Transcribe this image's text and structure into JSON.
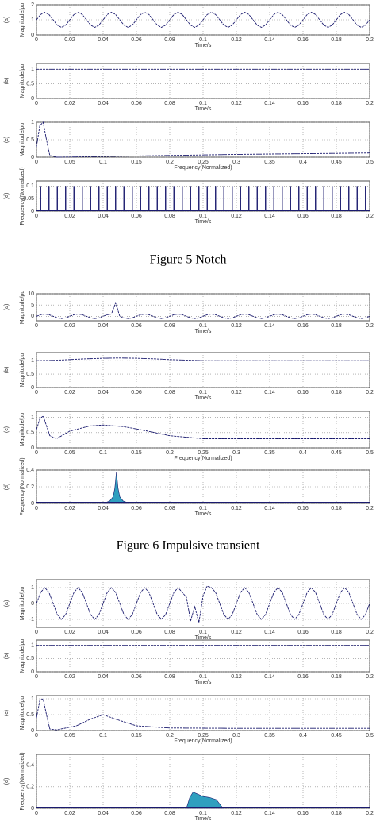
{
  "captions": [
    "Figure 5 Notch",
    "Figure 6 Impulsive transient"
  ],
  "chart_data": [
    {
      "type": "line",
      "panel": "(a)",
      "ylabel": "Magnitude/pu",
      "xlabel": "Time/s",
      "color": "#1a1a6e",
      "grid": true,
      "xlim": [
        0,
        0.2
      ],
      "ylim": [
        0,
        2
      ],
      "xticks": [
        0,
        0.02,
        0.04,
        0.06,
        0.08,
        0.1,
        0.12,
        0.14,
        0.16,
        0.18,
        0.2
      ],
      "yticks": [
        0,
        1,
        2
      ],
      "x": [
        0,
        0.0025,
        0.005,
        0.0075,
        0.01,
        0.0125,
        0.015,
        0.0175,
        0.02,
        0.0225,
        0.025,
        0.0275,
        0.03,
        0.0325,
        0.035,
        0.0375,
        0.04,
        0.0425,
        0.045,
        0.0475,
        0.05,
        0.0525,
        0.055,
        0.0575,
        0.06,
        0.0625,
        0.065,
        0.0675,
        0.07,
        0.0725,
        0.075,
        0.0775,
        0.08,
        0.0825,
        0.085,
        0.0875,
        0.09,
        0.0925,
        0.095,
        0.0975,
        0.1,
        0.1025,
        0.105,
        0.1075,
        0.11,
        0.1125,
        0.115,
        0.1175,
        0.12,
        0.1225,
        0.125,
        0.1275,
        0.13,
        0.1325,
        0.135,
        0.1375,
        0.14,
        0.1425,
        0.145,
        0.1475,
        0.15,
        0.1525,
        0.155,
        0.1575,
        0.16,
        0.1625,
        0.165,
        0.1675,
        0.17,
        0.1725,
        0.175,
        0.1775,
        0.18,
        0.1825,
        0.185,
        0.1875,
        0.19,
        0.1925,
        0.195,
        0.1975,
        0.2
      ],
      "values": [
        1,
        1.35,
        1.5,
        1.35,
        1,
        0.65,
        0.5,
        0.65,
        1,
        1.35,
        1.5,
        1.35,
        1,
        0.65,
        0.5,
        0.65,
        1,
        1.35,
        1.5,
        1.35,
        1,
        0.65,
        0.5,
        0.65,
        1,
        1.35,
        1.5,
        1.35,
        1,
        0.65,
        0.5,
        0.65,
        1,
        1.35,
        1.5,
        1.35,
        1,
        0.65,
        0.5,
        0.65,
        1,
        1.35,
        1.5,
        1.35,
        1,
        0.65,
        0.5,
        0.65,
        1,
        1.35,
        1.5,
        1.35,
        1,
        0.65,
        0.5,
        0.65,
        1,
        1.35,
        1.5,
        1.35,
        1,
        0.65,
        0.5,
        0.65,
        1,
        1.35,
        1.5,
        1.35,
        1,
        0.65,
        0.5,
        0.65,
        1,
        1.35,
        1.5,
        1.35,
        1,
        0.65,
        0.5,
        0.65,
        1
      ]
    },
    {
      "type": "line",
      "panel": "(b)",
      "ylabel": "Magnitude/pu",
      "xlabel": "Time/s",
      "color": "#1a1a6e",
      "grid": true,
      "xlim": [
        0,
        0.2
      ],
      "ylim": [
        0,
        1.2
      ],
      "xticks": [
        0,
        0.02,
        0.04,
        0.06,
        0.08,
        0.1,
        0.12,
        0.14,
        0.16,
        0.18,
        0.2
      ],
      "yticks": [
        0,
        0.5,
        1
      ],
      "x": [
        0,
        0.2
      ],
      "values": [
        1,
        1
      ]
    },
    {
      "type": "line",
      "panel": "(c)",
      "ylabel": "Magnitude/pu",
      "xlabel": "Frequency(Normalized)",
      "color": "#1a1a6e",
      "grid": true,
      "xlim": [
        0,
        0.5
      ],
      "ylim": [
        0,
        1
      ],
      "xticks": [
        0,
        0.05,
        0.1,
        0.15,
        0.2,
        0.25,
        0.3,
        0.35,
        0.4,
        0.45,
        0.5
      ],
      "yticks": [
        0,
        0.5,
        1
      ],
      "x": [
        0,
        0.005,
        0.01,
        0.015,
        0.02,
        0.03,
        0.1,
        0.2,
        0.3,
        0.4,
        0.5
      ],
      "values": [
        0.3,
        0.9,
        1,
        0.5,
        0.05,
        0,
        0.02,
        0.05,
        0.08,
        0.1,
        0.12
      ]
    },
    {
      "type": "spikes",
      "panel": "(d)",
      "ylabel": "Frequency(Normalized)",
      "xlabel": "Time/s",
      "color": "#1a1a6e",
      "grid": true,
      "xlim": [
        0,
        0.2
      ],
      "ylim": [
        0,
        0.12
      ],
      "xticks": [
        0,
        0.02,
        0.04,
        0.06,
        0.08,
        0.1,
        0.12,
        0.14,
        0.16,
        0.18,
        0.2
      ],
      "yticks": [
        0,
        0.05,
        0.1
      ],
      "x": [
        0.0025,
        0.0075,
        0.0125,
        0.0175,
        0.0225,
        0.0275,
        0.0325,
        0.0375,
        0.0425,
        0.0475,
        0.0525,
        0.0575,
        0.0625,
        0.0675,
        0.0725,
        0.0775,
        0.0825,
        0.0875,
        0.0925,
        0.0975,
        0.1025,
        0.1075,
        0.1125,
        0.1175,
        0.1225,
        0.1275,
        0.1325,
        0.1375,
        0.1425,
        0.1475,
        0.1525,
        0.1575,
        0.1625,
        0.1675,
        0.1725,
        0.1775,
        0.1825,
        0.1875,
        0.1925,
        0.1975
      ],
      "values": [
        0.1,
        0.1,
        0.1,
        0.1,
        0.1,
        0.1,
        0.1,
        0.1,
        0.1,
        0.1,
        0.1,
        0.1,
        0.1,
        0.1,
        0.1,
        0.1,
        0.1,
        0.1,
        0.1,
        0.1,
        0.1,
        0.1,
        0.1,
        0.1,
        0.1,
        0.1,
        0.1,
        0.1,
        0.1,
        0.1,
        0.1,
        0.1,
        0.1,
        0.1,
        0.1,
        0.1,
        0.1,
        0.1,
        0.1,
        0.1
      ]
    },
    {
      "type": "line",
      "panel": "(a)",
      "ylabel": "Magnitude/pu",
      "xlabel": "Time/s",
      "color": "#1a1a6e",
      "grid": true,
      "xlim": [
        0,
        0.2
      ],
      "ylim": [
        -2,
        10
      ],
      "xticks": [
        0,
        0.02,
        0.04,
        0.06,
        0.08,
        0.1,
        0.12,
        0.14,
        0.16,
        0.18,
        0.2
      ],
      "yticks": [
        0,
        5,
        10
      ],
      "x": [
        0,
        0.0025,
        0.005,
        0.0075,
        0.01,
        0.0125,
        0.015,
        0.0175,
        0.02,
        0.0225,
        0.025,
        0.0275,
        0.03,
        0.0325,
        0.035,
        0.0375,
        0.04,
        0.0425,
        0.045,
        0.0475,
        0.05,
        0.0525,
        0.055,
        0.0575,
        0.06,
        0.0625,
        0.065,
        0.0675,
        0.07,
        0.0725,
        0.075,
        0.0775,
        0.08,
        0.0825,
        0.085,
        0.0875,
        0.09,
        0.0925,
        0.095,
        0.0975,
        0.1,
        0.1025,
        0.105,
        0.1075,
        0.11,
        0.1125,
        0.115,
        0.1175,
        0.12,
        0.1225,
        0.125,
        0.1275,
        0.13,
        0.1325,
        0.135,
        0.1375,
        0.14,
        0.1425,
        0.145,
        0.1475,
        0.15,
        0.1525,
        0.155,
        0.1575,
        0.16,
        0.1625,
        0.165,
        0.1675,
        0.17,
        0.1725,
        0.175,
        0.1775,
        0.18,
        0.1825,
        0.185,
        0.1875,
        0.19,
        0.1925,
        0.195,
        0.1975,
        0.2
      ],
      "values": [
        0,
        0.7,
        1,
        0.7,
        0,
        -0.7,
        -1,
        -0.7,
        0,
        0.7,
        1,
        0.7,
        0,
        -0.7,
        -1,
        -0.7,
        0,
        0.7,
        1,
        6,
        0,
        -0.7,
        -1,
        -0.7,
        0,
        0.7,
        1,
        0.7,
        0,
        -0.7,
        -1,
        -0.7,
        0,
        0.7,
        1,
        0.7,
        0,
        -0.7,
        -1,
        -0.7,
        0,
        0.7,
        1,
        0.7,
        0,
        -0.7,
        -1,
        -0.7,
        0,
        0.7,
        1,
        0.7,
        0,
        -0.7,
        -1,
        -0.7,
        0,
        0.7,
        1,
        0.7,
        0,
        -0.7,
        -1,
        -0.7,
        0,
        0.7,
        1,
        0.7,
        0,
        -0.7,
        -1,
        -0.7,
        0,
        0.7,
        1,
        0.7,
        0,
        -0.7,
        -1,
        -0.7,
        0
      ]
    },
    {
      "type": "line",
      "panel": "(b)",
      "ylabel": "Magnitude/pu",
      "xlabel": "Time/s",
      "color": "#1a1a6e",
      "grid": true,
      "xlim": [
        0,
        0.2
      ],
      "ylim": [
        0,
        1.3
      ],
      "xticks": [
        0,
        0.02,
        0.04,
        0.06,
        0.08,
        0.1,
        0.12,
        0.14,
        0.16,
        0.18,
        0.2
      ],
      "yticks": [
        0,
        0.5,
        1
      ],
      "x": [
        0,
        0.01,
        0.02,
        0.03,
        0.04,
        0.05,
        0.06,
        0.07,
        0.08,
        0.09,
        0.1,
        0.2
      ],
      "values": [
        1,
        1.01,
        1.04,
        1.07,
        1.09,
        1.1,
        1.09,
        1.07,
        1.04,
        1.02,
        1,
        1
      ]
    },
    {
      "type": "line",
      "panel": "(c)",
      "ylabel": "Magnitude/pu",
      "xlabel": "Frequency(Normalized)",
      "color": "#1a1a6e",
      "grid": true,
      "xlim": [
        0,
        0.5
      ],
      "ylim": [
        0,
        1.2
      ],
      "xticks": [
        0,
        0.05,
        0.1,
        0.15,
        0.2,
        0.25,
        0.3,
        0.35,
        0.4,
        0.45,
        0.5
      ],
      "yticks": [
        0,
        0.5,
        1
      ],
      "x": [
        0,
        0.005,
        0.01,
        0.02,
        0.03,
        0.05,
        0.08,
        0.1,
        0.13,
        0.16,
        0.2,
        0.25,
        0.3,
        0.4,
        0.5
      ],
      "values": [
        0.6,
        0.95,
        1.05,
        0.4,
        0.3,
        0.55,
        0.72,
        0.75,
        0.7,
        0.58,
        0.4,
        0.3,
        0.3,
        0.3,
        0.3
      ]
    },
    {
      "type": "area",
      "panel": "(d)",
      "ylabel": "Frequency(Normalized)",
      "xlabel": "Time/s",
      "color": "#2f9fbf",
      "grid": true,
      "xlim": [
        0,
        0.2
      ],
      "ylim": [
        0,
        0.4
      ],
      "xticks": [
        0,
        0.02,
        0.04,
        0.06,
        0.08,
        0.1,
        0.12,
        0.14,
        0.16,
        0.18,
        0.2
      ],
      "yticks": [
        0,
        0.2,
        0.4
      ],
      "x": [
        0.04,
        0.044,
        0.046,
        0.047,
        0.048,
        0.049,
        0.05,
        0.052,
        0.056
      ],
      "values": [
        0,
        0.03,
        0.08,
        0.18,
        0.38,
        0.18,
        0.08,
        0.03,
        0
      ]
    },
    {
      "type": "line",
      "panel": "(a)",
      "ylabel": "Magnitude/pu",
      "xlabel": "Time/s",
      "color": "#1a1a6e",
      "grid": true,
      "xlim": [
        0,
        0.2
      ],
      "ylim": [
        -1.5,
        1.5
      ],
      "xticks": [
        0,
        0.02,
        0.04,
        0.06,
        0.08,
        0.1,
        0.12,
        0.14,
        0.16,
        0.18,
        0.2
      ],
      "yticks": [
        -1,
        0,
        1
      ],
      "x": [
        0,
        0.0025,
        0.005,
        0.0075,
        0.01,
        0.0125,
        0.015,
        0.0175,
        0.02,
        0.0225,
        0.025,
        0.0275,
        0.03,
        0.0325,
        0.035,
        0.0375,
        0.04,
        0.0425,
        0.045,
        0.0475,
        0.05,
        0.0525,
        0.055,
        0.0575,
        0.06,
        0.0625,
        0.065,
        0.0675,
        0.07,
        0.0725,
        0.075,
        0.0775,
        0.08,
        0.0825,
        0.085,
        0.0875,
        0.09,
        0.0925,
        0.095,
        0.0975,
        0.1,
        0.1025,
        0.105,
        0.1075,
        0.11,
        0.1125,
        0.115,
        0.1175,
        0.12,
        0.1225,
        0.125,
        0.1275,
        0.13,
        0.1325,
        0.135,
        0.1375,
        0.14,
        0.1425,
        0.145,
        0.1475,
        0.15,
        0.1525,
        0.155,
        0.1575,
        0.16,
        0.1625,
        0.165,
        0.1675,
        0.17,
        0.1725,
        0.175,
        0.1775,
        0.18,
        0.1825,
        0.185,
        0.1875,
        0.19,
        0.1925,
        0.195,
        0.1975,
        0.2
      ],
      "values": [
        0,
        0.7,
        1,
        0.7,
        0,
        -0.7,
        -1,
        -0.7,
        0,
        0.7,
        1,
        0.7,
        0,
        -0.7,
        -1,
        -0.7,
        0,
        0.7,
        1,
        0.7,
        0,
        -0.7,
        -1,
        -0.7,
        0,
        0.7,
        1,
        0.7,
        0,
        -0.7,
        -1,
        -0.7,
        0,
        0.7,
        1,
        0.7,
        0.4,
        -1.1,
        -0.2,
        -1.2,
        0.5,
        1.1,
        1,
        0.7,
        0,
        -0.7,
        -1,
        -0.7,
        0,
        0.7,
        1,
        0.7,
        0,
        -0.7,
        -1,
        -0.7,
        0,
        0.7,
        1,
        0.7,
        0,
        -0.7,
        -1,
        -0.7,
        0,
        0.7,
        1,
        0.7,
        0,
        -0.7,
        -1,
        -0.7,
        0,
        0.7,
        1,
        0.7,
        0,
        -0.7,
        -1,
        -0.7,
        0
      ]
    },
    {
      "type": "line",
      "panel": "(b)",
      "ylabel": "Magnitude/pu",
      "xlabel": "Time/s",
      "color": "#1a1a6e",
      "grid": true,
      "xlim": [
        0,
        0.2
      ],
      "ylim": [
        0,
        1.2
      ],
      "xticks": [
        0,
        0.02,
        0.04,
        0.06,
        0.08,
        0.1,
        0.12,
        0.14,
        0.16,
        0.18,
        0.2
      ],
      "yticks": [
        0,
        0.5,
        1
      ],
      "x": [
        0,
        0.2
      ],
      "values": [
        1,
        1
      ]
    },
    {
      "type": "line",
      "panel": "(c)",
      "ylabel": "Magnitude/pu",
      "xlabel": "Frequency(Normalized)",
      "color": "#1a1a6e",
      "grid": true,
      "xlim": [
        0,
        0.5
      ],
      "ylim": [
        0,
        1.1
      ],
      "xticks": [
        0,
        0.05,
        0.1,
        0.15,
        0.2,
        0.25,
        0.3,
        0.35,
        0.4,
        0.45,
        0.5
      ],
      "yticks": [
        0,
        0.5,
        1
      ],
      "x": [
        0,
        0.005,
        0.01,
        0.015,
        0.02,
        0.03,
        0.06,
        0.08,
        0.1,
        0.12,
        0.15,
        0.2,
        0.3,
        0.4,
        0.5
      ],
      "values": [
        0.4,
        0.95,
        1,
        0.5,
        0.05,
        0.02,
        0.15,
        0.35,
        0.5,
        0.35,
        0.15,
        0.08,
        0.07,
        0.07,
        0.07
      ]
    },
    {
      "type": "area",
      "panel": "(d)",
      "ylabel": "Frequency(Normalized)",
      "xlabel": "Time/s",
      "color": "#2f9fbf",
      "grid": true,
      "xlim": [
        0,
        0.2
      ],
      "ylim": [
        0,
        0.5
      ],
      "xticks": [
        0,
        0.02,
        0.04,
        0.06,
        0.08,
        0.1,
        0.12,
        0.14,
        0.16,
        0.18,
        0.2
      ],
      "yticks": [
        0,
        0.2,
        0.4
      ],
      "x": [
        0.09,
        0.092,
        0.094,
        0.097,
        0.1,
        0.104,
        0.108,
        0.112
      ],
      "values": [
        0,
        0.1,
        0.15,
        0.13,
        0.11,
        0.1,
        0.08,
        0
      ]
    }
  ]
}
